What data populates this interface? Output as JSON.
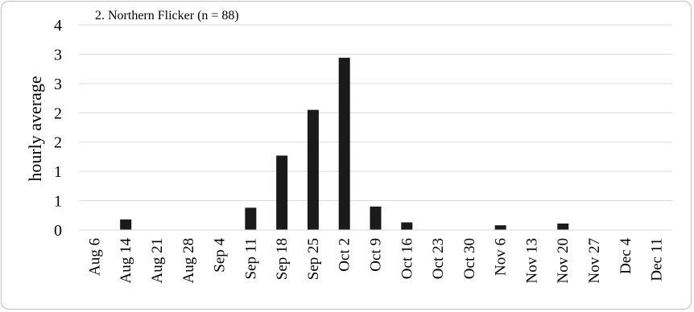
{
  "chart_data": {
    "type": "bar",
    "title": "2. Northern Flicker (n = 88)",
    "ylabel": "hourly average",
    "xlabel": "",
    "categories": [
      "Aug 6",
      "Aug 14",
      "Aug 21",
      "Aug 28",
      "Sep 4",
      "Sep 11",
      "Sep 18",
      "Sep 25",
      "Oct 2",
      "Oct 9",
      "Oct 16",
      "Oct 23",
      "Oct 30",
      "Nov 6",
      "Nov 13",
      "Nov 20",
      "Nov 27",
      "Dec 4",
      "Dec 11"
    ],
    "values": [
      0,
      0.18,
      0,
      0,
      0,
      0.38,
      1.27,
      2.05,
      2.94,
      0.4,
      0.13,
      0,
      0,
      0.08,
      0,
      0.11,
      0,
      0,
      0
    ],
    "ylim": [
      0,
      3.5
    ],
    "ytick_values": [
      0,
      0.5,
      1,
      1.5,
      2,
      2.5,
      3,
      3.5
    ],
    "ytick_labels": [
      "0",
      "1",
      "1",
      "2",
      "2",
      "3",
      "3",
      "4"
    ],
    "bar_color": "#1a1a1a",
    "grid": true,
    "legend": "none"
  }
}
